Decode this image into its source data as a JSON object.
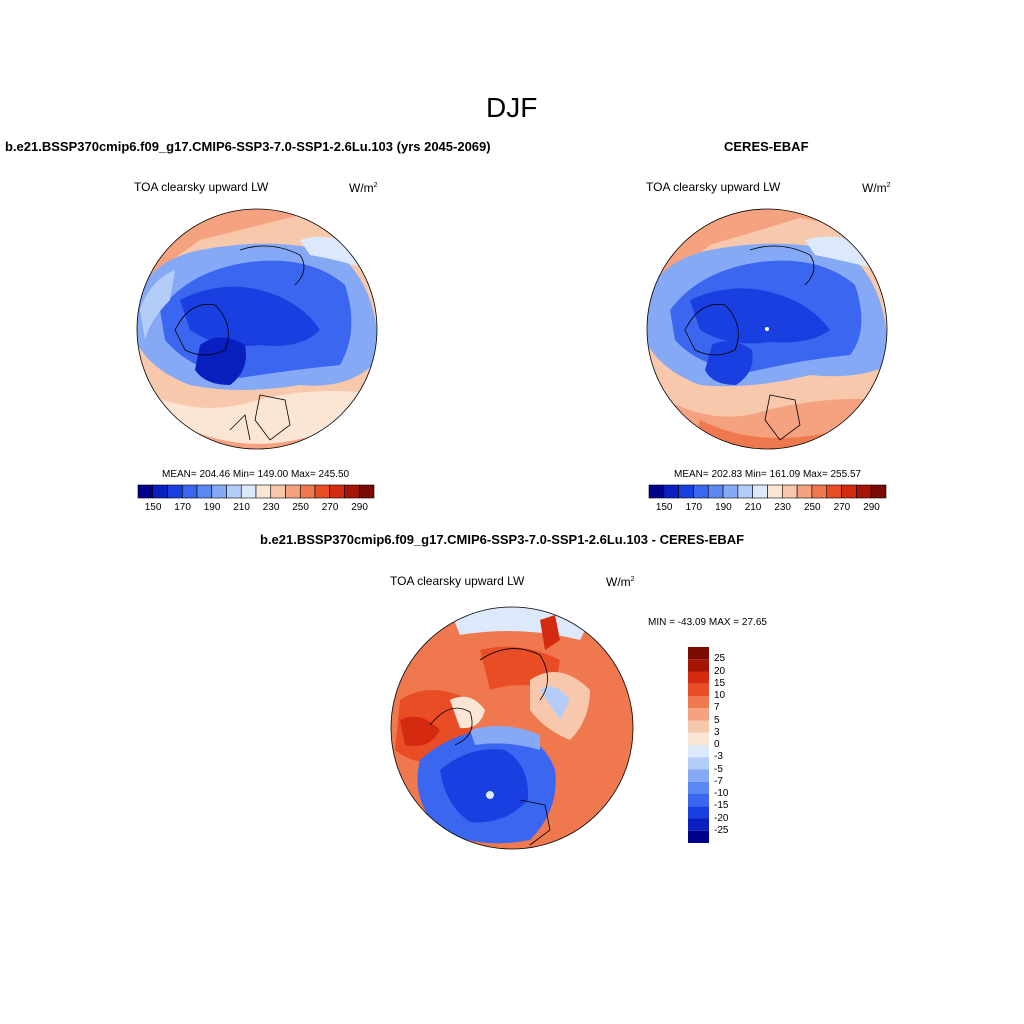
{
  "figure": {
    "season": "DJF",
    "model_title": "b.e21.BSSP370cmip6.f09_g17.CMIP6-SSP3-7.0-SSP1-2.6Lu.103 (yrs 2045-2069)",
    "obs_title": "CERES-EBAF",
    "diff_title": "b.e21.BSSP370cmip6.f09_g17.CMIP6-SSP3-7.0-SSP1-2.6Lu.103 - CERES-EBAF"
  },
  "panels": {
    "model": {
      "variable": "TOA clearsky upward LW",
      "units": "W/m",
      "units_exp": "2",
      "stats": "MEAN= 204.46  Min= 149.00  Max= 245.50"
    },
    "obs": {
      "variable": "TOA clearsky upward LW",
      "units": "W/m",
      "units_exp": "2",
      "stats": "MEAN= 202.83  Min= 161.09  Max= 255.57"
    },
    "diff": {
      "variable": "TOA clearsky upward LW",
      "units": "W/m",
      "units_exp": "2",
      "stats": "MIN = -43.09 MAX =  27.65"
    }
  },
  "colorbars": {
    "abs": {
      "colors": [
        "#00008a",
        "#0a1fbf",
        "#1a3fe0",
        "#3a66f0",
        "#5c88f4",
        "#86a9f5",
        "#b4cdf8",
        "#dbe9fa",
        "#fbe6d6",
        "#f8c8ac",
        "#f5a280",
        "#f0784f",
        "#e84d26",
        "#d42a10",
        "#a51505",
        "#7a0a02"
      ],
      "tick_labels": [
        "150",
        "170",
        "190",
        "210",
        "230",
        "250",
        "270",
        "290"
      ]
    },
    "diff": {
      "colors": [
        "#7a0a02",
        "#a51505",
        "#d42a10",
        "#e84d26",
        "#f0784f",
        "#f5a280",
        "#f8c8ac",
        "#fbe6d6",
        "#dbe9fa",
        "#b4cdf8",
        "#86a9f5",
        "#5c88f4",
        "#3a66f0",
        "#1a3fe0",
        "#0a1fbf",
        "#00008a"
      ],
      "labels": [
        "25",
        "20",
        "15",
        "10",
        "7",
        "5",
        "3",
        "0",
        "-3",
        "-5",
        "-7",
        "-10",
        "-15",
        "-20",
        "-25"
      ]
    }
  }
}
